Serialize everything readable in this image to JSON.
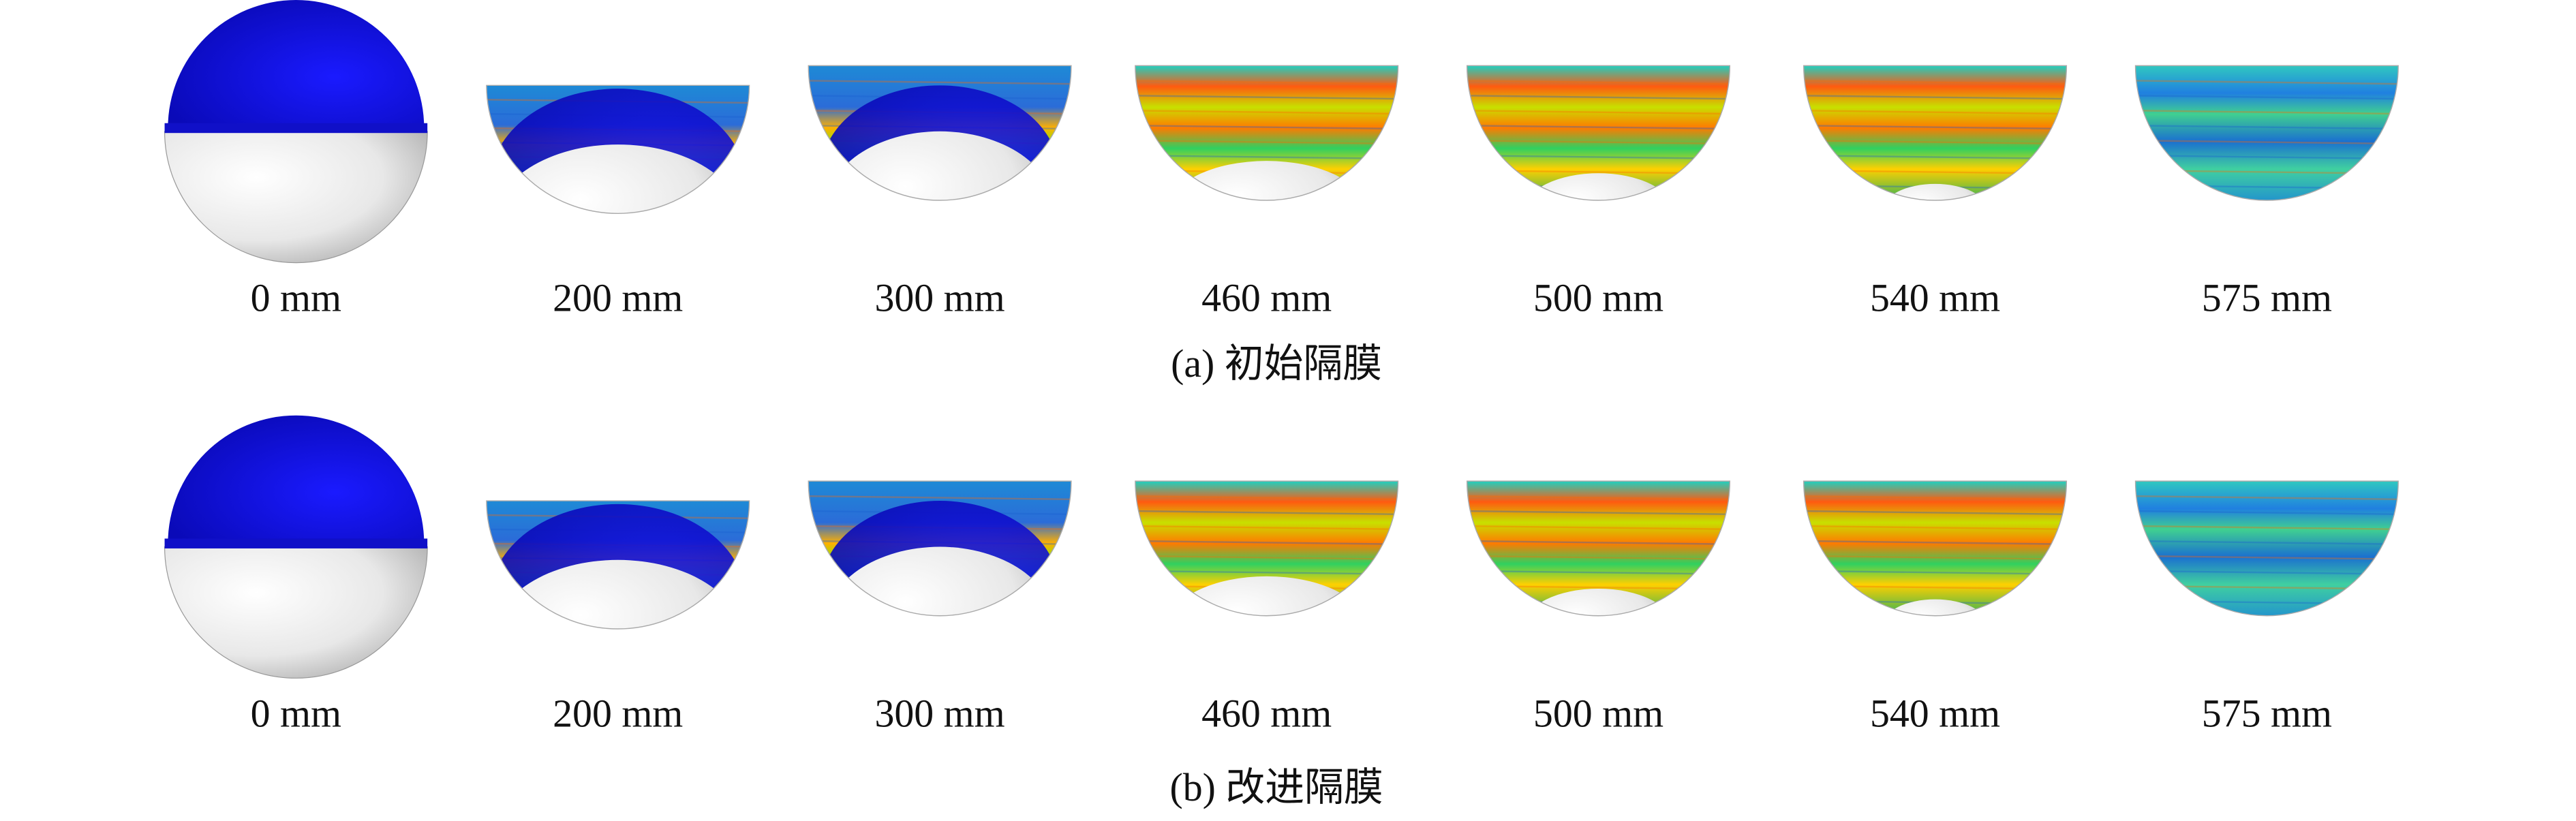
{
  "rows": [
    {
      "labels": [
        "0 mm",
        "200 mm",
        "300 mm",
        "460 mm",
        "500 mm",
        "540 mm",
        "575 mm"
      ],
      "caption": "(a) 初始隔膜"
    },
    {
      "labels": [
        "0 mm",
        "200 mm",
        "300 mm",
        "460 mm",
        "500 mm",
        "540 mm",
        "575 mm"
      ],
      "caption": "(b) 改进隔膜"
    }
  ]
}
